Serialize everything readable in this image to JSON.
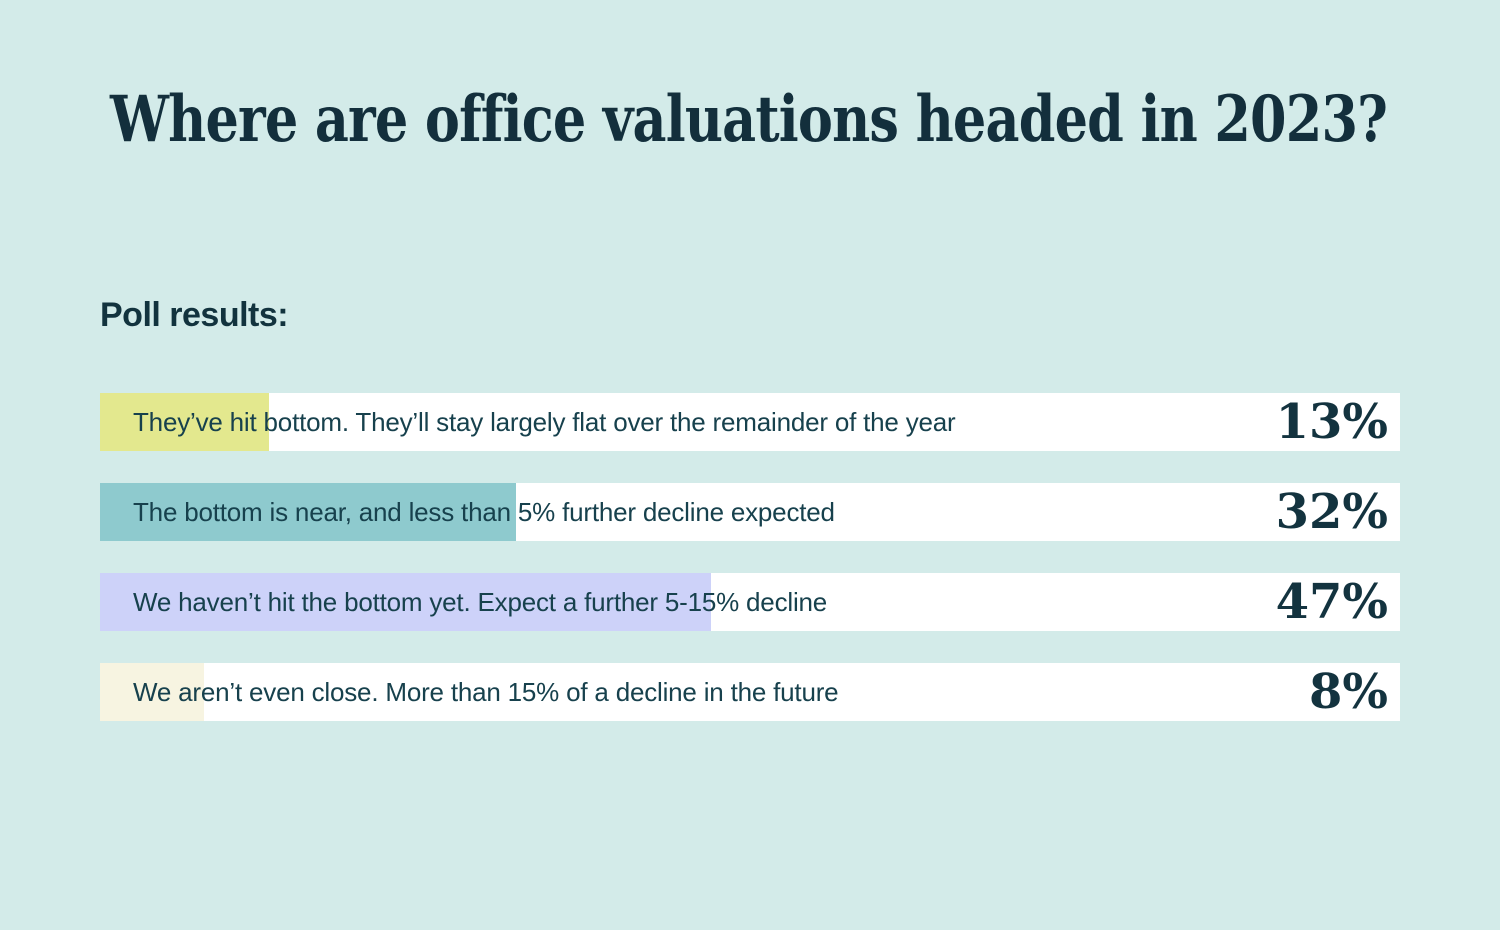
{
  "page": {
    "background_color": "#d3ebe9",
    "title_color": "#132f3c",
    "text_color": "#17414d"
  },
  "header": {
    "title": "Where are office valuations headed in 2023?"
  },
  "poll": {
    "section_label": "Poll results:",
    "bars": [
      {
        "label": "They’ve hit bottom. They’ll stay largely flat over the remainder of the year",
        "value_pct": 13,
        "value_label": "13%",
        "fill_color": "#e3e88e"
      },
      {
        "label": "The bottom is near, and less than 5% further decline expected",
        "value_pct": 32,
        "value_label": "32%",
        "fill_color": "#8ecace"
      },
      {
        "label": "We haven’t hit the bottom yet. Expect a further 5-15% decline",
        "value_pct": 47,
        "value_label": "47%",
        "fill_color": "#cdd2f9"
      },
      {
        "label": "We aren’t even close. More than 15% of a decline in the future",
        "value_pct": 8,
        "value_label": "8%",
        "fill_color": "#f7f4e1"
      }
    ]
  },
  "chart_data": {
    "type": "bar",
    "orientation": "horizontal",
    "title": "Where are office valuations headed in 2023?",
    "subtitle": "Poll results:",
    "categories": [
      "They’ve hit bottom. They’ll stay largely flat over the remainder of the year",
      "The bottom is near, and less than 5% further decline expected",
      "We haven’t hit the bottom yet. Expect a further 5-15% decline",
      "We aren’t even close. More than 15% of a decline in the future"
    ],
    "values": [
      13,
      32,
      47,
      8
    ],
    "value_labels": [
      "13%",
      "32%",
      "47%",
      "8%"
    ],
    "bar_colors": [
      "#e3e88e",
      "#8ecace",
      "#cdd2f9",
      "#f7f4e1"
    ],
    "xlabel": "",
    "ylabel": "",
    "xlim": [
      0,
      100
    ],
    "grid": false,
    "legend": false
  }
}
